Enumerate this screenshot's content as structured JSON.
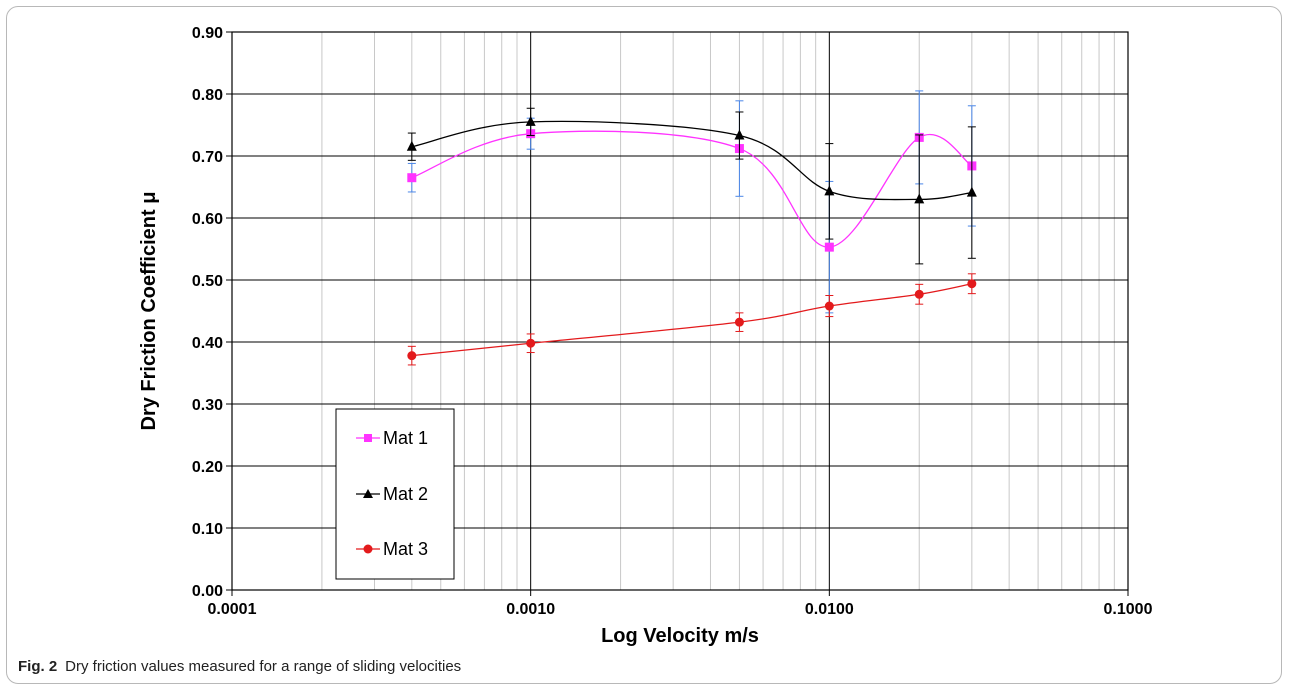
{
  "chart_data": {
    "type": "line",
    "x_scale": "log",
    "xlim": [
      0.0001,
      0.1
    ],
    "ylim": [
      0,
      0.9
    ],
    "xlabel": "Log Velocity m/s",
    "ylabel": "Dry Friction Coefficient  μ",
    "x_tick_labels": [
      "0.0001",
      "0.0010",
      "0.0100",
      "0.1000"
    ],
    "y_tick_labels": [
      "0.00",
      "0.10",
      "0.20",
      "0.30",
      "0.40",
      "0.50",
      "0.60",
      "0.70",
      "0.80",
      "0.90"
    ],
    "grid": true,
    "legend_position": "bottom-left",
    "series": [
      {
        "name": "Mat 1",
        "color": "#ff33ff",
        "error_color": "#4a86e8",
        "marker": "square",
        "x": [
          0.0004,
          0.001,
          0.005,
          0.01,
          0.02,
          0.03
        ],
        "y": [
          0.665,
          0.736,
          0.712,
          0.553,
          0.73,
          0.684
        ],
        "err": [
          0.023,
          0.025,
          0.077,
          0.106,
          0.075,
          0.097
        ]
      },
      {
        "name": "Mat 2",
        "color": "#000000",
        "error_color": "#000000",
        "marker": "triangle",
        "x": [
          0.0004,
          0.001,
          0.005,
          0.01,
          0.02,
          0.03
        ],
        "y": [
          0.715,
          0.755,
          0.733,
          0.643,
          0.63,
          0.641
        ],
        "err": [
          0.022,
          0.022,
          0.038,
          0.077,
          0.104,
          0.106
        ]
      },
      {
        "name": "Mat 3",
        "color": "#e31a1c",
        "error_color": "#e31a1c",
        "marker": "circle",
        "x": [
          0.0004,
          0.001,
          0.005,
          0.01,
          0.02,
          0.03
        ],
        "y": [
          0.378,
          0.398,
          0.432,
          0.458,
          0.477,
          0.494
        ],
        "err": [
          0.015,
          0.015,
          0.015,
          0.017,
          0.016,
          0.016
        ]
      }
    ]
  },
  "caption": {
    "label": "Fig. 2",
    "text": "Dry friction values measured for a range of sliding velocities"
  }
}
